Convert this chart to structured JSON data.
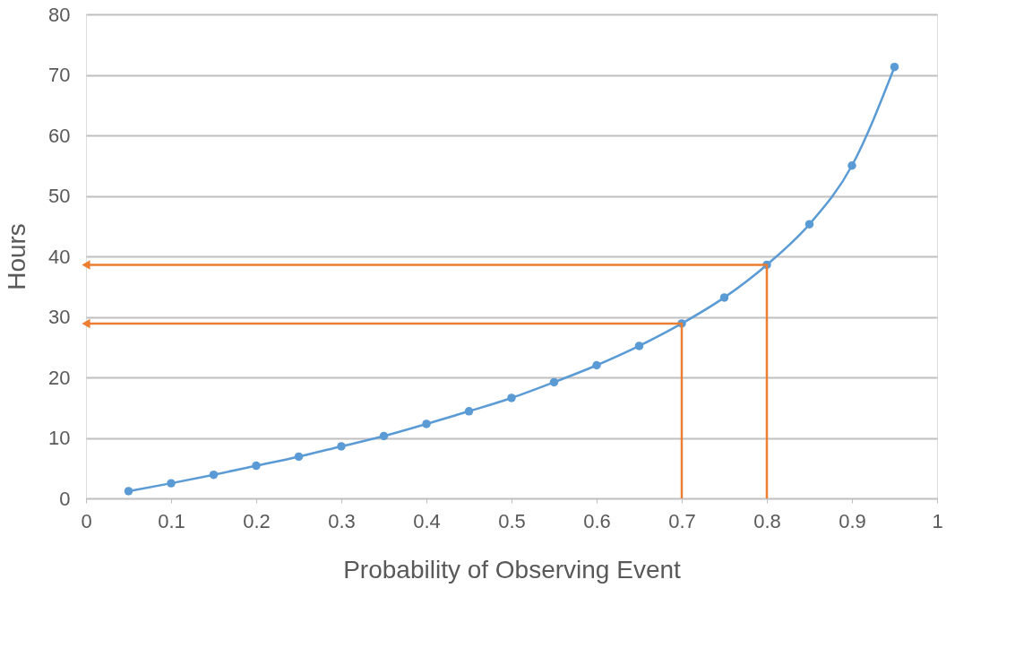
{
  "chart_data": {
    "type": "line",
    "xlabel": "Probability of Observing Event",
    "ylabel": "Hours",
    "xlim": [
      0,
      1
    ],
    "xticks": [
      0,
      0.1,
      0.2,
      0.3,
      0.4,
      0.5,
      0.6,
      0.7,
      0.8,
      0.9,
      1
    ],
    "ylim": [
      0,
      80
    ],
    "yticks": [
      0,
      10,
      20,
      30,
      40,
      50,
      60,
      70,
      80
    ],
    "grid": "y",
    "marker": "circle",
    "line_style": "solid",
    "series": [
      {
        "color": "#5b9bd5",
        "x": [
          0.05,
          0.1,
          0.15,
          0.2,
          0.25,
          0.3,
          0.35,
          0.4,
          0.45,
          0.5,
          0.55,
          0.6,
          0.65,
          0.7,
          0.75,
          0.8,
          0.85,
          0.9,
          0.95
        ],
        "values": [
          1.2,
          2.5,
          3.9,
          5.4,
          6.9,
          8.6,
          10.3,
          12.3,
          14.4,
          16.6,
          19.2,
          22.0,
          25.2,
          28.9,
          33.2,
          38.6,
          45.3,
          55.0,
          71.3
        ]
      },
      {
        "color": "#ed7d31",
        "type": "line",
        "marker": "none",
        "x": [
          0.7,
          0.7,
          0
        ],
        "values": [
          0,
          28.9,
          28.9
        ]
      },
      {
        "color": "#ed7d31",
        "type": "line",
        "marker": "none",
        "x": [
          0.8,
          0.8,
          0
        ],
        "values": [
          0,
          38.6,
          38.6
        ]
      }
    ]
  }
}
